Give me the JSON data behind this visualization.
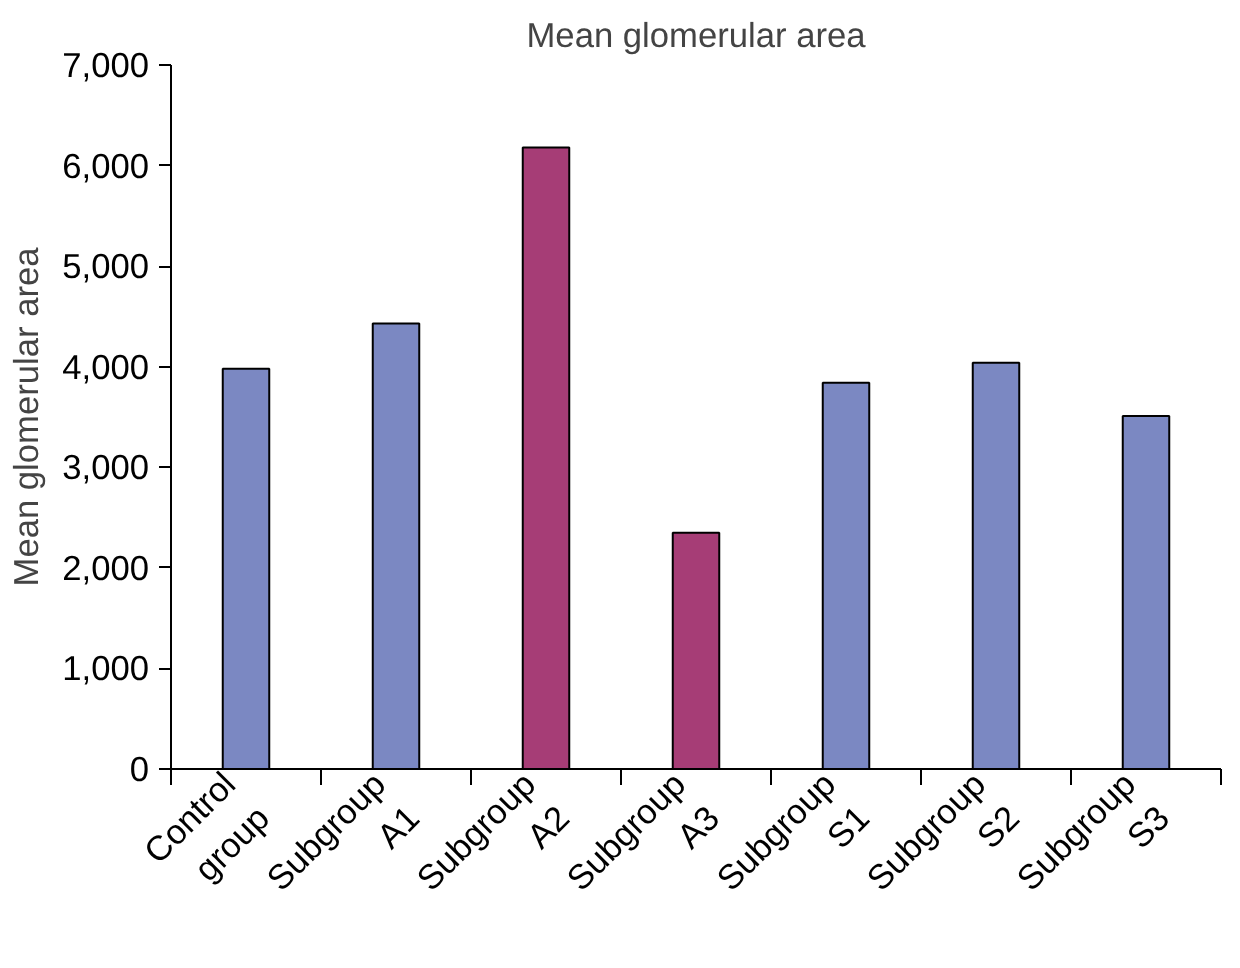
{
  "chart_data": {
    "type": "bar",
    "title": "Mean glomerular area",
    "ylabel": "Mean glomerular area",
    "categories": [
      "Control\ngroup",
      "Subgroup\nA1",
      "Subgroup\nA2",
      "Subgroup\nA3",
      "Subgroup\nS1",
      "Subgroup\nS2",
      "Subgroup\nS3"
    ],
    "values": [
      3980,
      4430,
      6180,
      2350,
      3840,
      4040,
      3510
    ],
    "colors": [
      "#7b88c2",
      "#7b88c2",
      "#a63d76",
      "#a63d76",
      "#7b88c2",
      "#7b88c2",
      "#7b88c2"
    ],
    "ylim": [
      0,
      7000
    ],
    "yticks": [
      {
        "value": 0,
        "label": "0"
      },
      {
        "value": 1000,
        "label": "1,000"
      },
      {
        "value": 2000,
        "label": "2,000"
      },
      {
        "value": 3000,
        "label": "3,000"
      },
      {
        "value": 4000,
        "label": "4,000"
      },
      {
        "value": 5000,
        "label": "5,000"
      },
      {
        "value": 6000,
        "label": "6,000"
      },
      {
        "value": 7000,
        "label": "7,000"
      }
    ],
    "grid": false
  }
}
